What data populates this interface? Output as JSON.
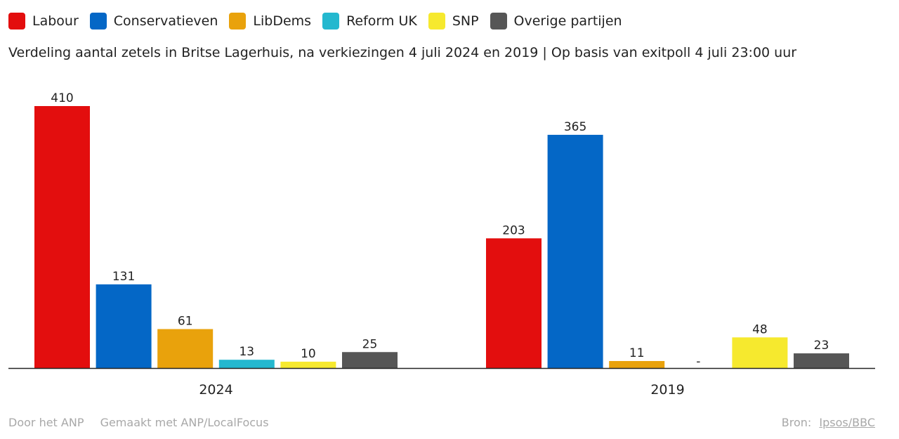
{
  "legend": [
    {
      "label": "Labour",
      "color": "#e30e0e"
    },
    {
      "label": "Conservatieven",
      "color": "#0467c6"
    },
    {
      "label": "LibDems",
      "color": "#e9a20c"
    },
    {
      "label": "Reform UK",
      "color": "#24b8cf"
    },
    {
      "label": "SNP",
      "color": "#f6e92e"
    },
    {
      "label": "Overige partijen",
      "color": "#565656"
    }
  ],
  "subtitle": "Verdeling aantal zetels in Britse Lagerhuis, na verkiezingen 4 juli 2024 en 2019 | Op basis van exitpoll 4 juli 23:00 uur",
  "footer": {
    "author": "Door het ANP",
    "made_with": "Gemaakt met ANP/LocalFocus",
    "source_label": "Bron:",
    "source_link": "Ipsos/BBC"
  },
  "chart_data": {
    "type": "bar",
    "categories": [
      "2024",
      "2019"
    ],
    "series": [
      {
        "name": "Labour",
        "values": [
          410,
          203
        ],
        "labels": [
          "410",
          "203"
        ]
      },
      {
        "name": "Conservatieven",
        "values": [
          131,
          365
        ],
        "labels": [
          "131",
          "365"
        ]
      },
      {
        "name": "LibDems",
        "values": [
          61,
          11
        ],
        "labels": [
          "61",
          "11"
        ]
      },
      {
        "name": "Reform UK",
        "values": [
          13,
          null
        ],
        "labels": [
          "13",
          "-"
        ]
      },
      {
        "name": "SNP",
        "values": [
          10,
          48
        ],
        "labels": [
          "10",
          "48"
        ]
      },
      {
        "name": "Overige partijen",
        "values": [
          25,
          23
        ],
        "labels": [
          "25",
          "23"
        ]
      }
    ],
    "ylim": [
      0,
      410
    ],
    "grid": false,
    "legend_position": "top-left"
  }
}
